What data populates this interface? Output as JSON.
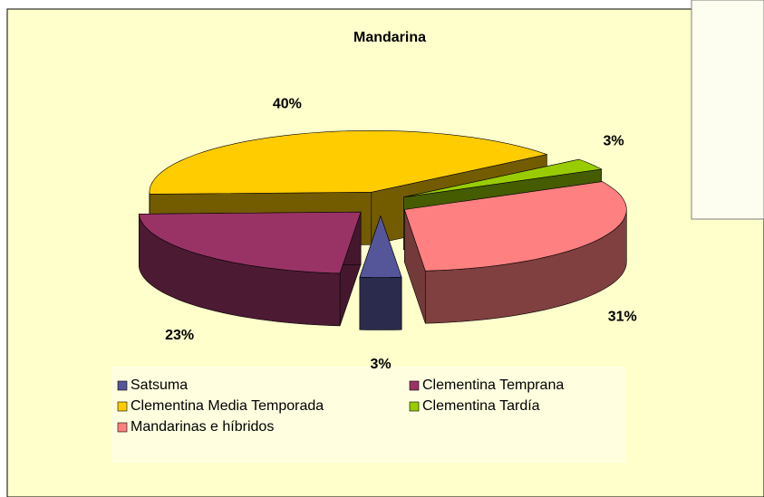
{
  "chart_data": {
    "type": "pie",
    "title": "Mandarina",
    "categories": [
      "Satsuma",
      "Clementina Temprana",
      "Clementina Media Temporada",
      "Clementina Tardía",
      "Mandarinas e híbridos"
    ],
    "values": [
      3,
      23,
      40,
      3,
      31
    ],
    "value_labels": [
      "3%",
      "23%",
      "40%",
      "3%",
      "31%"
    ],
    "colors": [
      "#55559a",
      "#993366",
      "#ffcc00",
      "#99cc00",
      "#ff8080"
    ],
    "legend": "bottom"
  }
}
